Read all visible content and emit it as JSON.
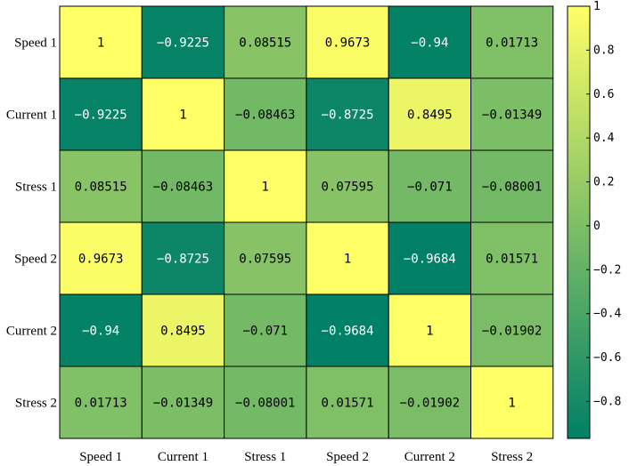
{
  "chart_data": {
    "type": "heatmap",
    "title": "",
    "xlabel": "",
    "ylabel": "",
    "rows": [
      "Speed 1",
      "Current 1",
      "Stress 1",
      "Speed 2",
      "Current 2",
      "Stress 2"
    ],
    "cols": [
      "Speed 1",
      "Current 1",
      "Stress 1",
      "Speed 2",
      "Current 2",
      "Stress 2"
    ],
    "values": [
      [
        1,
        -0.9225,
        0.08515,
        0.9673,
        -0.94,
        0.01713
      ],
      [
        -0.9225,
        1,
        -0.08463,
        -0.8725,
        0.8495,
        -0.01349
      ],
      [
        0.08515,
        -0.08463,
        1,
        0.07595,
        -0.071,
        -0.08001
      ],
      [
        0.9673,
        -0.8725,
        0.07595,
        1,
        -0.9684,
        0.01571
      ],
      [
        -0.94,
        0.8495,
        -0.071,
        -0.9684,
        1,
        -0.01902
      ],
      [
        0.01713,
        -0.01349,
        -0.08001,
        0.01571,
        -0.01902,
        1
      ]
    ],
    "value_labels": [
      [
        "1",
        "−0.9225",
        "0.08515",
        "0.9673",
        "−0.94",
        "0.01713"
      ],
      [
        "−0.9225",
        "1",
        "−0.08463",
        "−0.8725",
        "0.8495",
        "−0.01349"
      ],
      [
        "0.08515",
        "−0.08463",
        "1",
        "0.07595",
        "−0.071",
        "−0.08001"
      ],
      [
        "0.9673",
        "−0.8725",
        "0.07595",
        "1",
        "−0.9684",
        "0.01571"
      ],
      [
        "−0.94",
        "0.8495",
        "−0.071",
        "−0.9684",
        "1",
        "−0.01902"
      ],
      [
        "0.01713",
        "−0.01349",
        "−0.08001",
        "0.01571",
        "−0.01902",
        "1"
      ]
    ],
    "colorbar": {
      "min": -0.9684,
      "max": 1,
      "ticks": [
        1,
        0.8,
        0.6,
        0.4,
        0.2,
        0,
        -0.2,
        -0.4,
        -0.6,
        -0.8
      ],
      "tick_labels": [
        "1",
        "0.8",
        "0.6",
        "0.4",
        "0.2",
        "0",
        "−0.2",
        "−0.4",
        "−0.6",
        "−0.8"
      ],
      "colormap": "summer"
    },
    "colors": {
      "low": "#008066",
      "high": "#ffff66",
      "grid": "#000000"
    }
  }
}
